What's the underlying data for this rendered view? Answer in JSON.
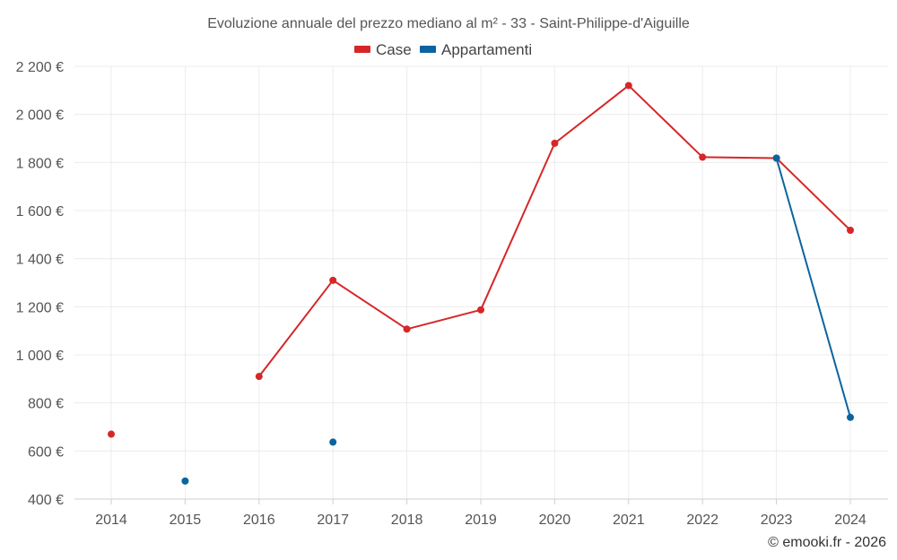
{
  "chart_data": {
    "type": "line",
    "title": "Evoluzione annuale del prezzo mediano al m² - 33 - Saint-Philippe-d'Aiguille",
    "categories": [
      "2014",
      "2015",
      "2016",
      "2017",
      "2018",
      "2019",
      "2020",
      "2021",
      "2022",
      "2023",
      "2024"
    ],
    "ylim": [
      400,
      2200
    ],
    "yticks": [
      400,
      600,
      800,
      1000,
      1200,
      1400,
      1600,
      1800,
      2000,
      2200
    ],
    "ytick_labels": [
      "400 €",
      "600 €",
      "800 €",
      "1 000 €",
      "1 200 €",
      "1 400 €",
      "1 600 €",
      "1 800 €",
      "2 000 €",
      "2 200 €"
    ],
    "xlabel": "",
    "ylabel": "",
    "grid": true,
    "legend_position": "top-center",
    "series": [
      {
        "name": "Case",
        "color": "#d62728",
        "values": [
          670,
          null,
          910,
          1310,
          1107,
          1187,
          1880,
          2120,
          1822,
          1818,
          1518
        ]
      },
      {
        "name": "Appartamenti",
        "color": "#0a64a0",
        "values": [
          null,
          475,
          null,
          637,
          null,
          null,
          null,
          null,
          null,
          1818,
          740
        ]
      }
    ]
  },
  "credit": "© emooki.fr - 2026"
}
